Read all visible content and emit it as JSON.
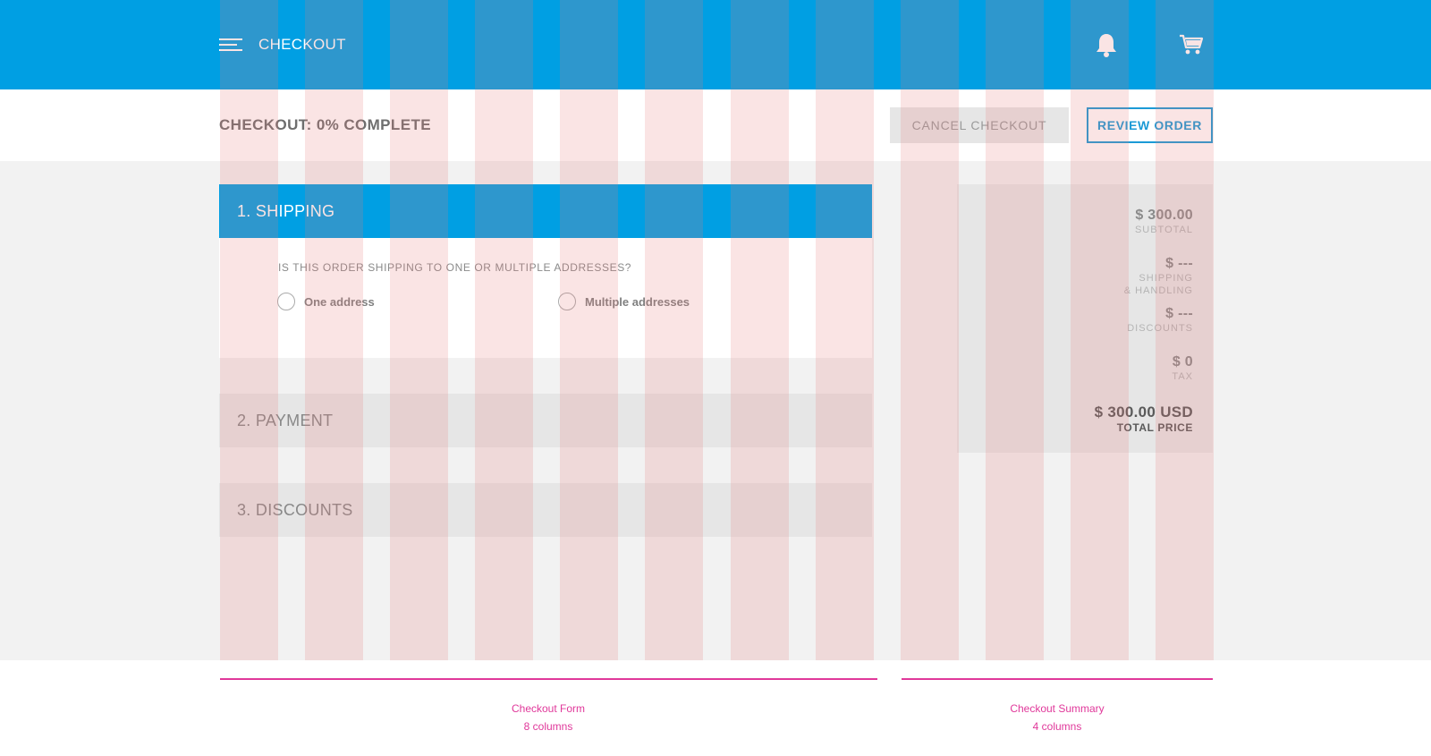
{
  "appbar": {
    "title": "CHECKOUT",
    "icons": [
      "menu-icon",
      "bell-icon",
      "cart-icon"
    ],
    "background": "#009fe3"
  },
  "subheader": {
    "progress_title": "CHECKOUT: 0% COMPLETE",
    "cancel_label": "CANCEL CHECKOUT",
    "review_label": "REVIEW ORDER"
  },
  "sections": {
    "shipping": {
      "label": "1. SHIPPING",
      "question": "IS THIS ORDER SHIPPING TO ONE OR MULTIPLE ADDRESSES?",
      "options": [
        "One address",
        "Multiple addresses"
      ]
    },
    "payment": {
      "label": "2. PAYMENT"
    },
    "discounts": {
      "label": "3. DISCOUNTS"
    }
  },
  "summary": {
    "subtotal_value": "$ 300.00",
    "subtotal_label": "SUBTOTAL",
    "shipping_value": "$ ---",
    "shipping_label_1": "SHIPPING",
    "shipping_label_2": "& HANDLING",
    "discounts_value": "$ ---",
    "discounts_label": "DISCOUNTS",
    "tax_value": "$ 0",
    "tax_label": "TAX",
    "total_value": "$ 300.00 USD",
    "total_label": "TOTAL PRICE"
  },
  "annotations": {
    "form_title": "Checkout Form",
    "form_columns": "8 columns",
    "summary_title": "Checkout Summary",
    "summary_columns": "4 columns"
  },
  "colors": {
    "primary": "#009fe3",
    "grid_overlay": "#e47878",
    "annotation": "#e0389a"
  }
}
